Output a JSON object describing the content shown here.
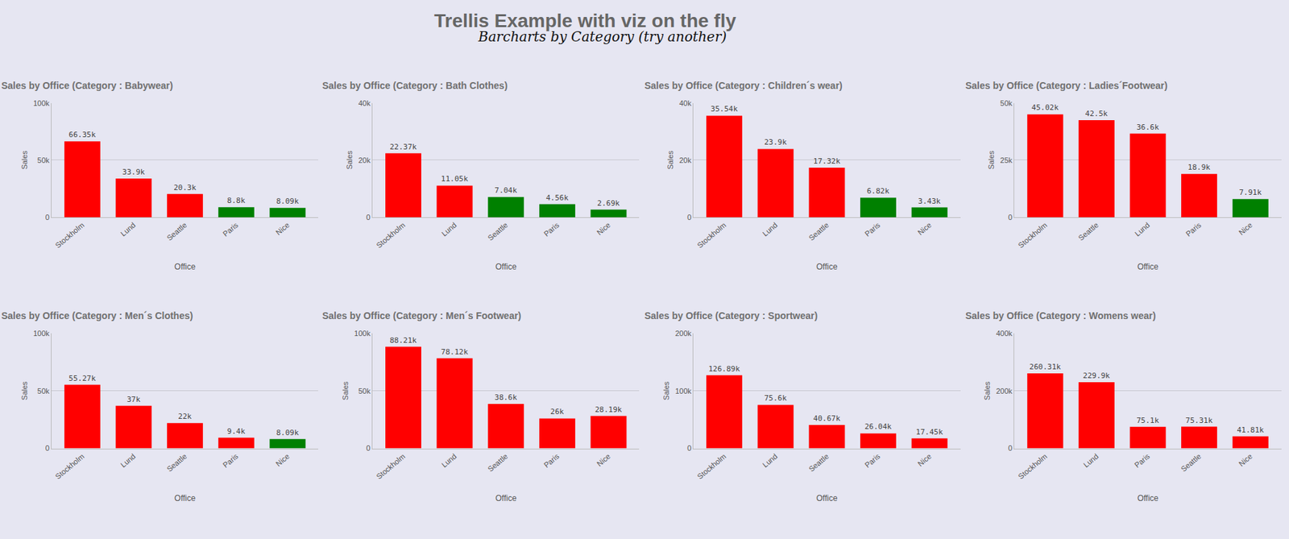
{
  "title": "Trellis Example with viz on the fly",
  "subtitle": "Barcharts by Category (try another)",
  "chart_data": [
    {
      "type": "bar",
      "title": "Sales by Office (Category : Babywear)",
      "x_label": "Office",
      "y_label": "Sales",
      "categories": [
        "Stockholm",
        "Lund",
        "Seattle",
        "Paris",
        "Nice"
      ],
      "values": [
        66350,
        33900,
        20300,
        8800,
        8090
      ],
      "value_labels": [
        "66.35k",
        "33.9k",
        "20.3k",
        "8.8k",
        "8.09k"
      ],
      "colors": [
        "#ff0000",
        "#ff0000",
        "#ff0000",
        "#008000",
        "#008000"
      ],
      "ylim": [
        0,
        100000
      ],
      "yticks": [
        0,
        {
          "value": 50000,
          "label": "50k"
        },
        {
          "value": 100000,
          "label": "100k"
        }
      ],
      "grid": true,
      "data_labels": true
    },
    {
      "type": "bar",
      "title": "Sales by Office (Category : Bath Clothes)",
      "x_label": "Office",
      "y_label": "Sales",
      "categories": [
        "Stockholm",
        "Lund",
        "Seattle",
        "Paris",
        "Nice"
      ],
      "values": [
        22370,
        11050,
        7040,
        4560,
        2690
      ],
      "value_labels": [
        "22.37k",
        "11.05k",
        "7.04k",
        "4.56k",
        "2.69k"
      ],
      "colors": [
        "#ff0000",
        "#ff0000",
        "#008000",
        "#008000",
        "#008000"
      ],
      "ylim": [
        0,
        40000
      ],
      "yticks": [
        0,
        {
          "value": 20000,
          "label": "20k"
        },
        {
          "value": 40000,
          "label": "40k"
        }
      ],
      "grid": true,
      "data_labels": true
    },
    {
      "type": "bar",
      "title": "Sales by Office (Category : Children´s wear)",
      "x_label": "Office",
      "y_label": "Sales",
      "categories": [
        "Stockholm",
        "Lund",
        "Seattle",
        "Paris",
        "Nice"
      ],
      "values": [
        35540,
        23900,
        17320,
        6820,
        3430
      ],
      "value_labels": [
        "35.54k",
        "23.9k",
        "17.32k",
        "6.82k",
        "3.43k"
      ],
      "colors": [
        "#ff0000",
        "#ff0000",
        "#ff0000",
        "#008000",
        "#008000"
      ],
      "ylim": [
        0,
        40000
      ],
      "yticks": [
        0,
        {
          "value": 20000,
          "label": "20k"
        },
        {
          "value": 40000,
          "label": "40k"
        }
      ],
      "grid": true,
      "data_labels": true
    },
    {
      "type": "bar",
      "title": "Sales by Office (Category : Ladies´Footwear)",
      "x_label": "Office",
      "y_label": "Sales",
      "categories": [
        "Stockholm",
        "Seattle",
        "Lund",
        "Paris",
        "Nice"
      ],
      "values": [
        45020,
        42500,
        36600,
        18900,
        7910
      ],
      "value_labels": [
        "45.02k",
        "42.5k",
        "36.6k",
        "18.9k",
        "7.91k"
      ],
      "colors": [
        "#ff0000",
        "#ff0000",
        "#ff0000",
        "#ff0000",
        "#008000"
      ],
      "ylim": [
        0,
        50000
      ],
      "yticks": [
        0,
        {
          "value": 25000,
          "label": "25k"
        },
        {
          "value": 50000,
          "label": "50k"
        }
      ],
      "grid": true,
      "data_labels": true
    },
    {
      "type": "bar",
      "title": "Sales by Office (Category : Men´s Clothes)",
      "x_label": "Office",
      "y_label": "Sales",
      "categories": [
        "Stockholm",
        "Lund",
        "Seattle",
        "Paris",
        "Nice"
      ],
      "values": [
        55270,
        37000,
        22000,
        9400,
        8090
      ],
      "value_labels": [
        "55.27k",
        "37k",
        "22k",
        "9.4k",
        "8.09k"
      ],
      "colors": [
        "#ff0000",
        "#ff0000",
        "#ff0000",
        "#ff0000",
        "#008000"
      ],
      "ylim": [
        0,
        100000
      ],
      "yticks": [
        0,
        {
          "value": 50000,
          "label": "50k"
        },
        {
          "value": 100000,
          "label": "100k"
        }
      ],
      "grid": true,
      "data_labels": true
    },
    {
      "type": "bar",
      "title": "Sales by Office (Category : Men´s Footwear)",
      "x_label": "Office",
      "y_label": "Sales",
      "categories": [
        "Stockholm",
        "Lund",
        "Seattle",
        "Paris",
        "Nice"
      ],
      "values": [
        88210,
        78120,
        38600,
        26000,
        28190
      ],
      "value_labels": [
        "88.21k",
        "78.12k",
        "38.6k",
        "26k",
        "28.19k"
      ],
      "colors": [
        "#ff0000",
        "#ff0000",
        "#ff0000",
        "#ff0000",
        "#ff0000"
      ],
      "ylim": [
        0,
        100000
      ],
      "yticks": [
        0,
        {
          "value": 50000,
          "label": "50k"
        },
        {
          "value": 100000,
          "label": "100k"
        }
      ],
      "grid": true,
      "data_labels": true
    },
    {
      "type": "bar",
      "title": "Sales by Office (Category : Sportwear)",
      "x_label": "Office",
      "y_label": "Sales",
      "categories": [
        "Stockholm",
        "Lund",
        "Seattle",
        "Paris",
        "Nice"
      ],
      "values": [
        126890,
        75600,
        40670,
        26040,
        17450
      ],
      "value_labels": [
        "126.89k",
        "75.6k",
        "40.67k",
        "26.04k",
        "17.45k"
      ],
      "colors": [
        "#ff0000",
        "#ff0000",
        "#ff0000",
        "#ff0000",
        "#ff0000"
      ],
      "ylim": [
        0,
        200000
      ],
      "yticks": [
        0,
        {
          "value": 100000,
          "label": "100k"
        },
        {
          "value": 200000,
          "label": "200k"
        }
      ],
      "grid": true,
      "data_labels": true
    },
    {
      "type": "bar",
      "title": "Sales by Office (Category : Womens wear)",
      "x_label": "Office",
      "y_label": "Sales",
      "categories": [
        "Stockholm",
        "Lund",
        "Paris",
        "Seattle",
        "Nice"
      ],
      "values": [
        260310,
        229900,
        75100,
        75310,
        41810
      ],
      "value_labels": [
        "260.31k",
        "229.9k",
        "75.1k",
        "75.31k",
        "41.81k"
      ],
      "colors": [
        "#ff0000",
        "#ff0000",
        "#ff0000",
        "#ff0000",
        "#ff0000"
      ],
      "ylim": [
        0,
        400000
      ],
      "yticks": [
        0,
        {
          "value": 200000,
          "label": "200k"
        },
        {
          "value": 400000,
          "label": "400k"
        }
      ],
      "grid": true,
      "data_labels": true
    }
  ]
}
